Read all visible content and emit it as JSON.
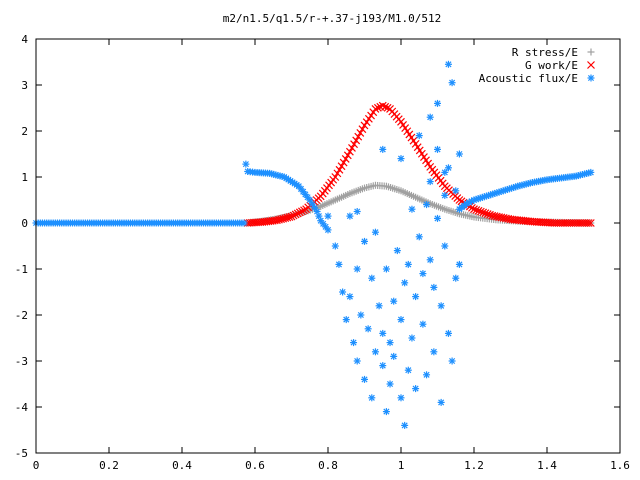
{
  "chart_data": {
    "type": "scatter",
    "title": "m2/n1.5/q1.5/r-+.37-j193/M1.0/512",
    "xlabel": "",
    "ylabel": "",
    "xlim": [
      0,
      1.6
    ],
    "ylim": [
      -5,
      4
    ],
    "x_ticks": [
      "0",
      "0.2",
      "0.4",
      "0.6",
      "0.8",
      "1",
      "1.2",
      "1.4",
      "1.6"
    ],
    "y_ticks": [
      "4",
      "3",
      "2",
      "1",
      "0",
      "-1",
      "-2",
      "-3",
      "-4",
      "-5"
    ],
    "grid": false,
    "legend_position": "top-right",
    "series": [
      {
        "name": "R stress/E",
        "marker": "+",
        "color": "#a0a0a0",
        "points": [
          [
            0.58,
            0.0
          ],
          [
            0.62,
            0.04
          ],
          [
            0.66,
            0.09
          ],
          [
            0.7,
            0.16
          ],
          [
            0.74,
            0.25
          ],
          [
            0.78,
            0.36
          ],
          [
            0.82,
            0.5
          ],
          [
            0.86,
            0.64
          ],
          [
            0.9,
            0.76
          ],
          [
            0.93,
            0.82
          ],
          [
            0.96,
            0.8
          ],
          [
            1.0,
            0.7
          ],
          [
            1.04,
            0.56
          ],
          [
            1.08,
            0.42
          ],
          [
            1.12,
            0.3
          ],
          [
            1.16,
            0.2
          ],
          [
            1.2,
            0.13
          ],
          [
            1.26,
            0.07
          ],
          [
            1.32,
            0.04
          ],
          [
            1.4,
            0.02
          ],
          [
            1.52,
            0.0
          ]
        ]
      },
      {
        "name": "G work/E",
        "marker": "x",
        "color": "#ff0000",
        "points": [
          [
            0.58,
            0.0
          ],
          [
            0.62,
            0.02
          ],
          [
            0.66,
            0.06
          ],
          [
            0.7,
            0.14
          ],
          [
            0.74,
            0.3
          ],
          [
            0.78,
            0.58
          ],
          [
            0.82,
            1.0
          ],
          [
            0.86,
            1.55
          ],
          [
            0.9,
            2.12
          ],
          [
            0.93,
            2.48
          ],
          [
            0.95,
            2.55
          ],
          [
            0.97,
            2.48
          ],
          [
            1.0,
            2.2
          ],
          [
            1.04,
            1.72
          ],
          [
            1.08,
            1.22
          ],
          [
            1.12,
            0.8
          ],
          [
            1.16,
            0.5
          ],
          [
            1.2,
            0.3
          ],
          [
            1.25,
            0.16
          ],
          [
            1.3,
            0.08
          ],
          [
            1.36,
            0.03
          ],
          [
            1.42,
            0.0
          ],
          [
            1.52,
            0.0
          ]
        ]
      },
      {
        "name": "Acoustic flux/E",
        "marker": "*",
        "color": "#1e90ff",
        "points": [
          [
            0.0,
            0.0
          ],
          [
            0.1,
            0.0
          ],
          [
            0.2,
            0.0
          ],
          [
            0.3,
            0.0
          ],
          [
            0.4,
            0.0
          ],
          [
            0.5,
            0.0
          ],
          [
            0.57,
            0.0
          ],
          [
            0.575,
            1.28
          ],
          [
            0.58,
            1.12
          ],
          [
            0.6,
            1.1
          ],
          [
            0.64,
            1.08
          ],
          [
            0.68,
            1.0
          ],
          [
            0.72,
            0.8
          ],
          [
            0.75,
            0.5
          ],
          [
            0.77,
            0.25
          ],
          [
            0.78,
            0.05
          ],
          [
            0.8,
            -0.15
          ],
          [
            1.16,
            0.3
          ],
          [
            1.18,
            0.42
          ],
          [
            1.2,
            0.5
          ],
          [
            1.24,
            0.6
          ],
          [
            1.28,
            0.7
          ],
          [
            1.32,
            0.8
          ],
          [
            1.36,
            0.88
          ],
          [
            1.4,
            0.94
          ],
          [
            1.44,
            0.98
          ],
          [
            1.48,
            1.02
          ],
          [
            1.52,
            1.1
          ],
          [
            0.8,
            0.15
          ],
          [
            0.82,
            -0.5
          ],
          [
            0.83,
            -0.9
          ],
          [
            0.84,
            -1.5
          ],
          [
            0.85,
            -2.1
          ],
          [
            0.86,
            -1.6
          ],
          [
            0.87,
            -2.6
          ],
          [
            0.88,
            -1.0
          ],
          [
            0.88,
            -3.0
          ],
          [
            0.89,
            -2.0
          ],
          [
            0.9,
            -3.4
          ],
          [
            0.9,
            -0.4
          ],
          [
            0.91,
            -2.3
          ],
          [
            0.92,
            -3.8
          ],
          [
            0.92,
            -1.2
          ],
          [
            0.93,
            -0.2
          ],
          [
            0.93,
            -2.8
          ],
          [
            0.94,
            -1.8
          ],
          [
            0.95,
            -3.1
          ],
          [
            0.95,
            -2.4
          ],
          [
            0.96,
            -1.0
          ],
          [
            0.96,
            -4.1
          ],
          [
            0.97,
            -2.6
          ],
          [
            0.97,
            -3.5
          ],
          [
            0.98,
            -1.7
          ],
          [
            0.98,
            -2.9
          ],
          [
            0.99,
            -0.6
          ],
          [
            1.0,
            -3.8
          ],
          [
            1.0,
            -2.1
          ],
          [
            1.01,
            -1.3
          ],
          [
            1.01,
            -4.4
          ],
          [
            1.02,
            -3.2
          ],
          [
            1.02,
            -0.9
          ],
          [
            1.03,
            0.3
          ],
          [
            1.03,
            -2.5
          ],
          [
            1.04,
            -1.6
          ],
          [
            1.04,
            -3.6
          ],
          [
            1.05,
            -0.3
          ],
          [
            1.06,
            -2.2
          ],
          [
            1.06,
            -1.1
          ],
          [
            1.07,
            0.4
          ],
          [
            1.07,
            -3.3
          ],
          [
            1.08,
            -0.8
          ],
          [
            1.08,
            0.9
          ],
          [
            1.09,
            -2.8
          ],
          [
            1.09,
            -1.4
          ],
          [
            1.1,
            1.6
          ],
          [
            1.1,
            0.1
          ],
          [
            1.11,
            -1.8
          ],
          [
            1.11,
            -3.9
          ],
          [
            1.12,
            0.6
          ],
          [
            1.12,
            -0.5
          ],
          [
            1.13,
            1.2
          ],
          [
            1.13,
            3.45
          ],
          [
            1.13,
            -2.4
          ],
          [
            1.14,
            3.05
          ],
          [
            1.14,
            -3.0
          ],
          [
            1.15,
            0.7
          ],
          [
            1.15,
            -1.2
          ],
          [
            1.16,
            1.5
          ],
          [
            1.16,
            -0.9
          ],
          [
            0.95,
            1.6
          ],
          [
            1.0,
            1.4
          ],
          [
            1.05,
            1.9
          ],
          [
            1.08,
            2.3
          ],
          [
            1.1,
            2.6
          ],
          [
            1.12,
            1.1
          ],
          [
            0.86,
            0.15
          ],
          [
            0.88,
            0.25
          ]
        ]
      }
    ]
  }
}
